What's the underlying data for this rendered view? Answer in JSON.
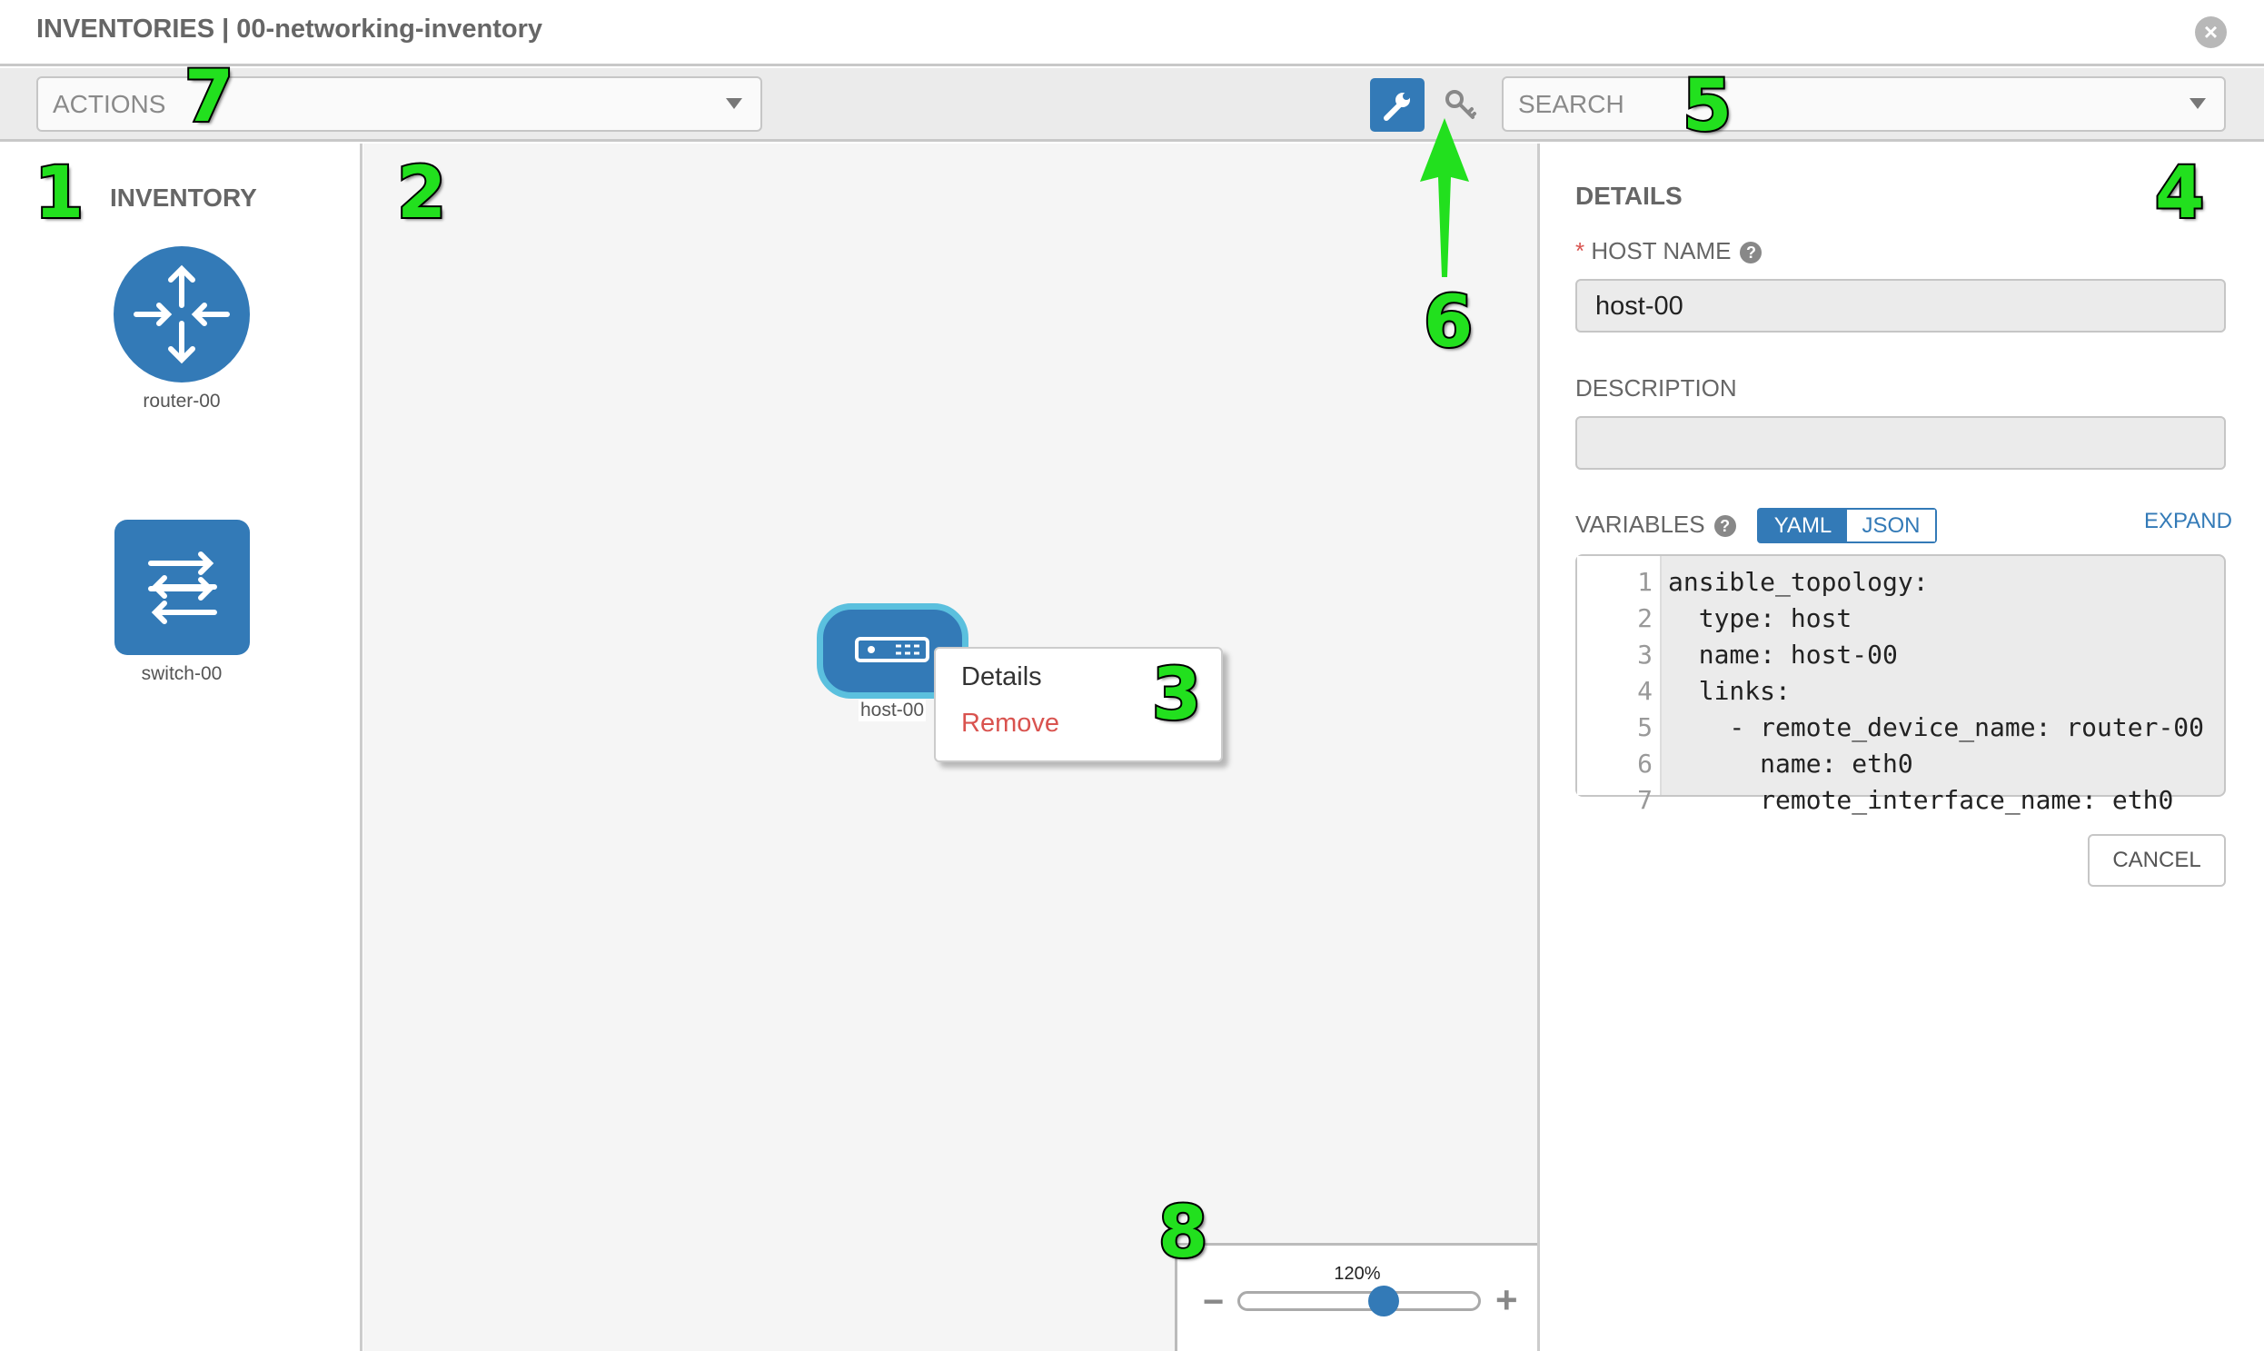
{
  "header": {
    "title": "INVENTORIES | 00-networking-inventory",
    "close_icon": "close-icon"
  },
  "toolbar": {
    "actions_label": "ACTIONS",
    "search_placeholder": "SEARCH",
    "wrench_icon": "wrench-icon",
    "key_icon": "key-icon"
  },
  "inventory": {
    "title": "INVENTORY",
    "items": [
      {
        "label": "router-00",
        "icon": "router-icon"
      },
      {
        "label": "switch-00",
        "icon": "switch-icon"
      }
    ]
  },
  "canvas": {
    "node": {
      "label": "host-00",
      "icon": "host-server-icon"
    },
    "context_menu": {
      "items": [
        {
          "label": "Details",
          "color": "#333333"
        },
        {
          "label": "Remove",
          "color": "#d9534f"
        }
      ]
    },
    "zoom": {
      "label": "120%",
      "level_fraction": 0.6,
      "minus": "−",
      "plus": "+"
    }
  },
  "details": {
    "title": "DETAILS",
    "required_mark": "*",
    "host_name_label": "HOST NAME",
    "host_name_value": "host-00",
    "description_label": "DESCRIPTION",
    "description_value": "",
    "variables_label": "VARIABLES",
    "help": "?",
    "yaml": "YAML",
    "json": "JSON",
    "expand": "EXPAND",
    "cancel": "CANCEL",
    "code_lines": [
      {
        "n": "1",
        "text": "ansible_topology:"
      },
      {
        "n": "2",
        "text": "  type: host"
      },
      {
        "n": "3",
        "text": "  name: host-00"
      },
      {
        "n": "4",
        "text": "  links:"
      },
      {
        "n": "5",
        "text": "    - remote_device_name: router-00"
      },
      {
        "n": "6",
        "text": "      name: eth0"
      },
      {
        "n": "7",
        "text": "      remote_interface_name: eth0"
      }
    ]
  },
  "annotations": [
    "1",
    "2",
    "3",
    "4",
    "5",
    "6",
    "7",
    "8"
  ],
  "colors": {
    "accent": "#337ab7",
    "selected_border": "#5bc0de",
    "danger": "#d9534f",
    "annotation": "#22e01e"
  }
}
